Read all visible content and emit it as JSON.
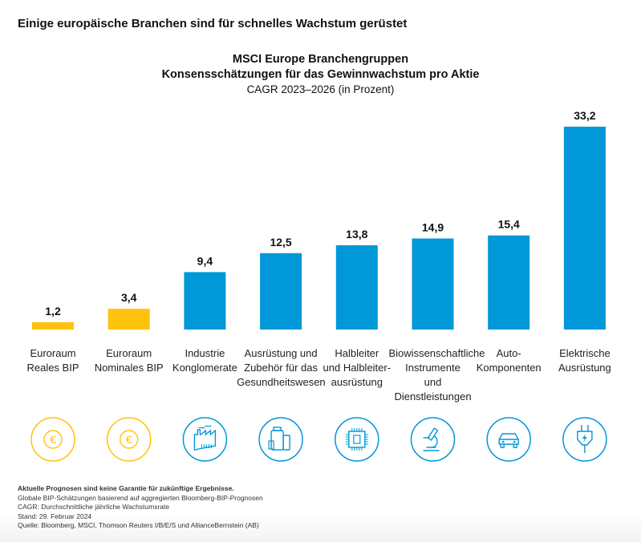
{
  "heading": "Einige europäische Branchen sind für schnelles Wachstum gerüstet",
  "chart_data": {
    "type": "bar",
    "title": "MSCI Europe Branchengruppen",
    "subtitle": "Konsensschätzungen für das Gewinnwachstum pro Aktie",
    "subtitle2": "CAGR 2023–2026 (in Prozent)",
    "categories": [
      "Euroraum Reales BIP",
      "Euroraum Nominales BIP",
      "Industrie Konglomerate",
      "Ausrüstung und Zubehör für das Gesundheitswesen",
      "Halbleiter und Halbleiter-ausrüstung",
      "Biowissenschaftliche Instrumente und Dienstleistungen",
      "Auto-Komponenten",
      "Elektrische Ausrüstung"
    ],
    "category_lines": [
      [
        "Euroraum",
        "Reales BIP"
      ],
      [
        "Euroraum",
        "Nominales BIP"
      ],
      [
        "Industrie",
        "Konglomerate"
      ],
      [
        "Ausrüstung und",
        "Zubehör für das",
        "Gesundheitswesen"
      ],
      [
        "Halbleiter",
        "und Halbleiter-",
        "ausrüstung"
      ],
      [
        "Biowissenschaftliche",
        "Instrumente",
        "und",
        "Dienstleistungen"
      ],
      [
        "Auto-",
        "Komponenten"
      ],
      [
        "Elektrische",
        "Ausrüstung"
      ]
    ],
    "values": [
      1.2,
      3.4,
      9.4,
      12.5,
      13.8,
      14.9,
      15.4,
      33.2
    ],
    "value_labels": [
      "1,2",
      "3,4",
      "9,4",
      "12,5",
      "13,8",
      "14,9",
      "15,4",
      "33,2"
    ],
    "bar_colors": [
      "#FFC20E",
      "#FFC20E",
      "#0098D8",
      "#0098D8",
      "#0098D8",
      "#0098D8",
      "#0098D8",
      "#0098D8"
    ],
    "icons": [
      "euro-icon",
      "euro-icon",
      "factory-icon",
      "medicine-bottles-icon",
      "chip-icon",
      "microscope-icon",
      "car-icon",
      "plug-icon"
    ],
    "ylim": [
      0,
      35
    ],
    "grid": false
  },
  "footnotes": [
    "Aktuelle Prognosen sind keine Garantie für zukünftige Ergebnisse.",
    "Globale BIP-Schätzungen basierend auf aggregierten Bloomberg-BIP-Prognosen",
    "CAGR: Durchschnittliche jährliche Wachstumsrate",
    "Stand: 29. Februar 2024",
    "Quelle: Bloomberg, MSCI, Thomson Reuters I/B/E/S und AllianceBernstein (AB)"
  ]
}
